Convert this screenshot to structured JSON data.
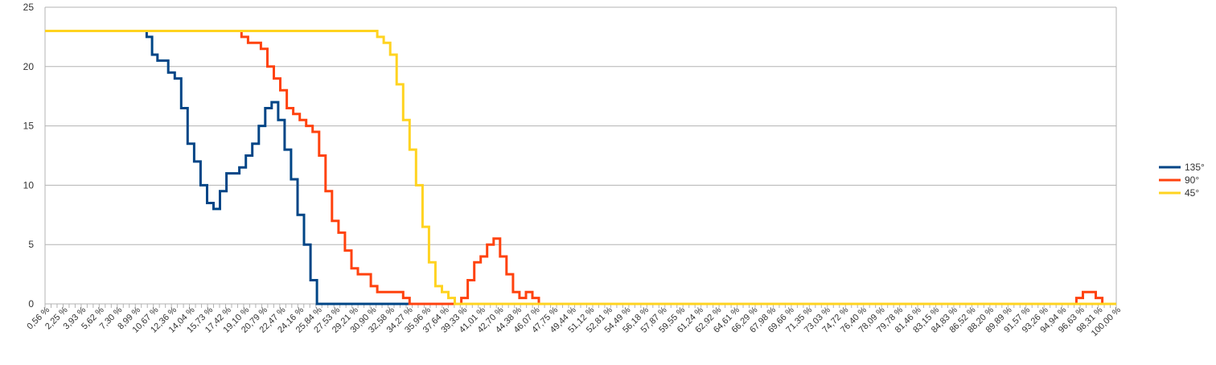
{
  "chart_data": {
    "type": "line",
    "step": true,
    "title": "",
    "xlabel": "",
    "ylabel": "",
    "ylim": [
      0,
      25
    ],
    "y_ticks": [
      0,
      5,
      10,
      15,
      20,
      25
    ],
    "grid": true,
    "legend_position": "right",
    "x_tick_labels": [
      "0,56 %",
      "2,25 %",
      "3,93 %",
      "5,62 %",
      "7,30 %",
      "8,99 %",
      "10,67 %",
      "12,36 %",
      "14,04 %",
      "15,73 %",
      "17,42 %",
      "19,10 %",
      "20,79 %",
      "22,47 %",
      "24,16 %",
      "25,84 %",
      "27,53 %",
      "29,21 %",
      "30,90 %",
      "32,58 %",
      "34,27 %",
      "35,96 %",
      "37,64 %",
      "39,33 %",
      "41,01 %",
      "42,70 %",
      "44,38 %",
      "46,07 %",
      "47,75 %",
      "49,44 %",
      "51,12 %",
      "52,81 %",
      "54,49 %",
      "56,18 %",
      "57,87 %",
      "59,55 %",
      "61,24 %",
      "62,92 %",
      "64,61 %",
      "66,29 %",
      "67,98 %",
      "69,66 %",
      "71,35 %",
      "73,03 %",
      "74,72 %",
      "76,40 %",
      "78,09 %",
      "79,78 %",
      "81,46 %",
      "83,15 %",
      "84,83 %",
      "86,52 %",
      "88,20 %",
      "89,89 %",
      "91,57 %",
      "93,26 %",
      "94,94 %",
      "96,63 %",
      "98,31 %",
      "100,00 %"
    ],
    "series": [
      {
        "name": "135°",
        "color": "#004586",
        "points": [
          [
            0.56,
            23
          ],
          [
            9.7,
            23
          ],
          [
            10.0,
            22.5
          ],
          [
            10.5,
            21
          ],
          [
            11.0,
            20.5
          ],
          [
            12.0,
            19.5
          ],
          [
            12.6,
            19
          ],
          [
            13.2,
            16.5
          ],
          [
            13.8,
            13.5
          ],
          [
            14.4,
            12
          ],
          [
            15.0,
            10
          ],
          [
            15.6,
            8.5
          ],
          [
            16.2,
            8
          ],
          [
            16.8,
            9.5
          ],
          [
            17.4,
            11
          ],
          [
            18.6,
            11.5
          ],
          [
            19.2,
            12.5
          ],
          [
            19.8,
            13.5
          ],
          [
            20.4,
            15
          ],
          [
            21.0,
            16.5
          ],
          [
            21.6,
            17
          ],
          [
            22.2,
            15.5
          ],
          [
            22.8,
            13
          ],
          [
            23.4,
            10.5
          ],
          [
            24.0,
            7.5
          ],
          [
            24.6,
            5
          ],
          [
            25.2,
            2
          ],
          [
            25.8,
            0
          ],
          [
            100,
            0
          ]
        ]
      },
      {
        "name": "90°",
        "color": "#ff420e",
        "points": [
          [
            0.56,
            23
          ],
          [
            18.4,
            23
          ],
          [
            18.8,
            22.5
          ],
          [
            19.4,
            22
          ],
          [
            20.6,
            21.5
          ],
          [
            21.2,
            20
          ],
          [
            21.8,
            19
          ],
          [
            22.4,
            18
          ],
          [
            23.0,
            16.5
          ],
          [
            23.6,
            16
          ],
          [
            24.2,
            15.5
          ],
          [
            24.8,
            15
          ],
          [
            25.4,
            14.5
          ],
          [
            26.0,
            12.5
          ],
          [
            26.6,
            9.5
          ],
          [
            27.2,
            7
          ],
          [
            27.8,
            6
          ],
          [
            28.4,
            4.5
          ],
          [
            29.0,
            3
          ],
          [
            29.6,
            2.5
          ],
          [
            30.8,
            1.5
          ],
          [
            31.4,
            1
          ],
          [
            33.8,
            0.5
          ],
          [
            34.4,
            0
          ],
          [
            38.6,
            0
          ],
          [
            39.2,
            0.5
          ],
          [
            39.8,
            2
          ],
          [
            40.4,
            3.5
          ],
          [
            41.0,
            4
          ],
          [
            41.6,
            5
          ],
          [
            42.2,
            5.5
          ],
          [
            42.8,
            4
          ],
          [
            43.4,
            2.5
          ],
          [
            44.0,
            1
          ],
          [
            44.6,
            0.5
          ],
          [
            45.2,
            1
          ],
          [
            45.8,
            0.5
          ],
          [
            46.4,
            0
          ],
          [
            95.7,
            0
          ],
          [
            96.3,
            0.5
          ],
          [
            96.9,
            1
          ],
          [
            98.1,
            0.5
          ],
          [
            98.7,
            0
          ],
          [
            100,
            0
          ]
        ]
      },
      {
        "name": "45°",
        "color": "#ffd320",
        "points": [
          [
            0.56,
            23
          ],
          [
            31.0,
            23
          ],
          [
            31.4,
            22.5
          ],
          [
            32.0,
            22
          ],
          [
            32.6,
            21
          ],
          [
            33.2,
            18.5
          ],
          [
            33.8,
            15.5
          ],
          [
            34.4,
            13
          ],
          [
            35.0,
            10
          ],
          [
            35.6,
            6.5
          ],
          [
            36.2,
            3.5
          ],
          [
            36.8,
            1.5
          ],
          [
            37.4,
            1
          ],
          [
            38.0,
            0.5
          ],
          [
            38.6,
            0
          ],
          [
            100,
            0
          ]
        ]
      }
    ]
  }
}
